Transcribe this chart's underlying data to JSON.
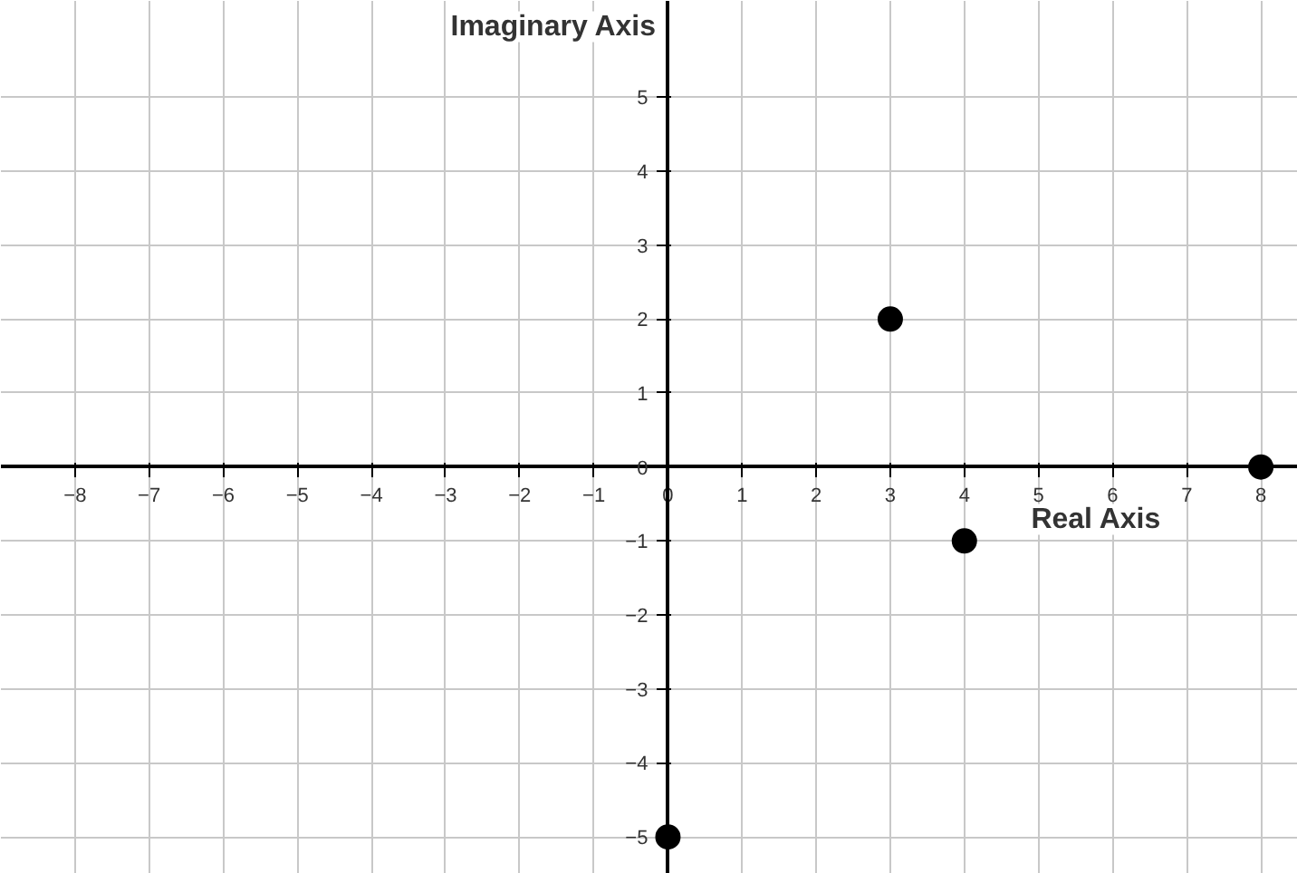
{
  "chart_data": {
    "type": "scatter",
    "xlabel": "Real Axis",
    "ylabel": "Imaginary Axis",
    "x": [
      3,
      4,
      8,
      0
    ],
    "values": [
      2,
      -1,
      0,
      -5
    ],
    "color": "#000000",
    "marker": "circle",
    "grid": true,
    "xlim": [
      -9,
      8.5
    ],
    "ylim": [
      -5.5,
      6.3
    ],
    "xticks": [
      -8,
      -7,
      -6,
      -5,
      -4,
      -3,
      -2,
      -1,
      0,
      1,
      2,
      3,
      4,
      5,
      6,
      7,
      8
    ],
    "yticks": [
      -5,
      -4,
      -3,
      -2,
      -1,
      0,
      1,
      2,
      3,
      4,
      5
    ]
  }
}
